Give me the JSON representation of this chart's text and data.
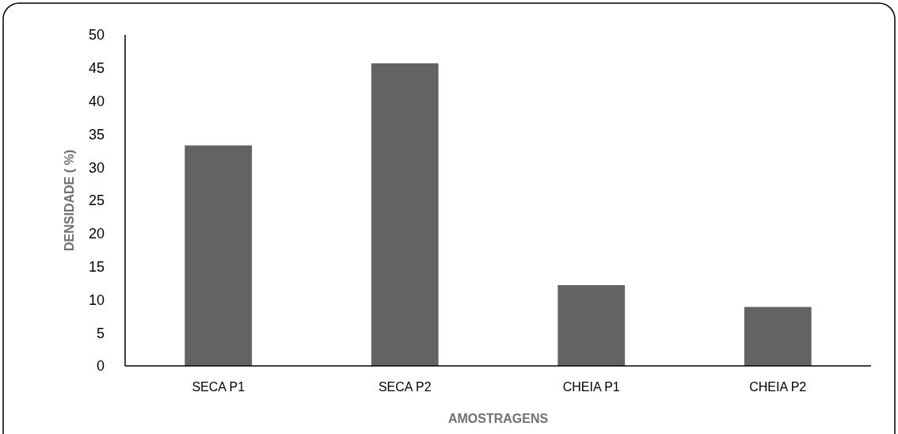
{
  "chart_data": {
    "type": "bar",
    "xlabel": "AMOSTRAGENS",
    "ylabel": "DENSIDADE ( %)",
    "categories": [
      "SECA P1",
      "SECA P2",
      "CHEIA P1",
      "CHEIA P2"
    ],
    "values": [
      33.3,
      45.7,
      12.2,
      8.9
    ],
    "color": "#636363",
    "ylim": [
      0,
      50
    ],
    "yticks": [
      0,
      5,
      10,
      15,
      20,
      25,
      30,
      35,
      40,
      45,
      50
    ],
    "grid": false
  }
}
